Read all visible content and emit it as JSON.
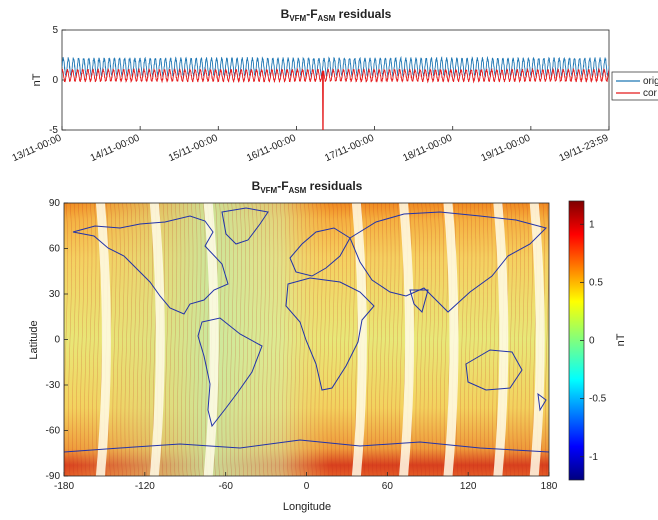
{
  "colors": {
    "original": "#1f77b4",
    "corrected": "#e41a1c",
    "coast": "#2233aa"
  },
  "chart_data": [
    {
      "type": "line",
      "title": {
        "base": "B",
        "sub1": "VFM",
        "mid": "-F",
        "sub2": "ASM",
        "rest": " residuals"
      },
      "ylabel": "nT",
      "ylim": [
        -5,
        5
      ],
      "yticks": [
        "-5",
        "0",
        "5"
      ],
      "xticks": [
        "13/11-00:00",
        "14/11-00:00",
        "15/11-00:00",
        "16/11-00:00",
        "17/11-00:00",
        "18/11-00:00",
        "19/11-00:00",
        "19/11-23:59"
      ],
      "xtick_days": [
        0,
        1,
        2,
        3,
        4,
        5,
        6,
        6.9993
      ],
      "series": [
        {
          "name": "original",
          "legend_text": "origi",
          "color": "#1f77b4",
          "mean": 1.3,
          "amplitude": 0.85
        },
        {
          "name": "corrected",
          "legend_text": "cor",
          "color": "#e41a1c",
          "mean": 0.45,
          "amplitude": 0.55,
          "spike_day": 3.34,
          "spike_value": -5
        }
      ],
      "legend": "right"
    },
    {
      "type": "heatmap",
      "title": {
        "base": "B",
        "sub1": "VFM",
        "mid": "-F",
        "sub2": "ASM",
        "rest": " residuals"
      },
      "xlabel": "Longitude",
      "ylabel": "Latitude",
      "xlim": [
        -180,
        180
      ],
      "ylim": [
        -90,
        90
      ],
      "xticks": [
        "-180",
        "-120",
        "-60",
        "0",
        "60",
        "120",
        "180"
      ],
      "xtick_values": [
        -180,
        -120,
        -60,
        0,
        60,
        120,
        180
      ],
      "yticks": [
        "90",
        "60",
        "30",
        "0",
        "-30",
        "-60",
        "-90"
      ],
      "ytick_values": [
        90,
        60,
        30,
        0,
        -30,
        -60,
        -90
      ],
      "colorbar": {
        "label": "nT",
        "range": [
          -1.2,
          1.2
        ],
        "ticks": [
          "1",
          "0.5",
          "0",
          "-0.5",
          "-1"
        ],
        "tick_values": [
          1,
          0.5,
          0,
          -0.5,
          -1
        ]
      },
      "track_gaps_longitude": [
        -150,
        -110,
        -70,
        40,
        75,
        108,
        145,
        172
      ]
    }
  ]
}
